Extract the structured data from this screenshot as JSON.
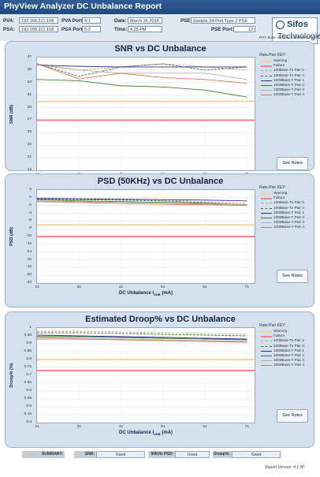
{
  "app": {
    "title": "PhyView Analyzer DC Unbalance Report"
  },
  "header": {
    "pva_label": "PVA:",
    "pva_ip": "192.168.221.108",
    "pva_port_label": "PVA Port:",
    "pva_port": "4-1",
    "psa_label": "PSA:",
    "psa_ip": "192.168.221.108",
    "psa_port_label": "PSA Port:",
    "psa_port": "5-2",
    "date_label": "Date:",
    "date": "March 26 2015",
    "time_label": "Time:",
    "time": "4:25 PM",
    "pse_label": "PSE:",
    "pse": "Sample 24-Port Type-2 PSE",
    "pse_port_label": "PSE Port:",
    "pse_port": "13",
    "suite_version": "PHY Suite Version: 4.100.05-12-15"
  },
  "logo": {
    "line1": "Sifos",
    "line2": "Technologies"
  },
  "legend_title": "Rate-Pair KEY:",
  "legend_items": [
    "Warning",
    "Failure",
    "100Base-Tx Pair 2",
    "100Base-Tx Pair 3",
    "1000Base-T Pair 1",
    "1000Base-T Pair 2",
    "1000Base-T Pair 3",
    "1000Base-T Pair 4"
  ],
  "legend_colors": [
    "#f6d49a",
    "#f3838c",
    "#c0a070",
    "#3a6d3a",
    "#2c2c9a",
    "#3d7c2e",
    "#b0b0b0",
    "#e07050"
  ],
  "notes_label": "See Notes",
  "chart_data": [
    {
      "type": "line",
      "title": "SNR vs DC Unbalance",
      "xlabel": "DC Unbalance I",
      "xlabel_sub": "UNB",
      "xlabel_unit": "(mA)",
      "ylabel": "SNR (dB)",
      "x": [
        21,
        31,
        41,
        51,
        61,
        71
      ],
      "ylim": [
        19,
        37
      ],
      "yticks": [
        19,
        21,
        23,
        25,
        27,
        29,
        31,
        33,
        35,
        37
      ],
      "warning": 30,
      "failure": 27,
      "series": [
        {
          "name": "100Base-Tx Pair 2",
          "dashed": true,
          "values": [
            36,
            35,
            35.5,
            36,
            35.5,
            35
          ]
        },
        {
          "name": "100Base-Tx Pair 3",
          "dashed": true,
          "values": [
            36,
            34,
            35.5,
            36,
            35,
            35.5
          ]
        },
        {
          "name": "1000Base-T Pair 1",
          "dashed": false,
          "values": [
            35.8,
            35.6,
            35.5,
            35.5,
            35.5,
            35.5
          ]
        },
        {
          "name": "1000Base-T Pair 2",
          "dashed": false,
          "values": [
            33.5,
            33.3,
            32.5,
            32.3,
            31.8,
            30.7
          ]
        },
        {
          "name": "1000Base-T Pair 3",
          "dashed": false,
          "values": [
            35.8,
            35,
            34.5,
            34.5,
            34.5,
            33.5
          ]
        },
        {
          "name": "1000Base-T Pair 4",
          "dashed": false,
          "values": [
            36,
            33.6,
            34.5,
            33.8,
            33.5,
            32.9
          ]
        }
      ]
    },
    {
      "type": "line",
      "title": "PSD (50KHz) vs DC Unbalance",
      "xlabel": "DC Unbalance I",
      "xlabel_sub": "UNB",
      "xlabel_unit": "(mA)",
      "ylabel": "PSD (dB)",
      "x": [
        21,
        31,
        41,
        51,
        61,
        71
      ],
      "ylim": [
        -22,
        2
      ],
      "yticks": [
        -22,
        -20,
        -18,
        -16,
        -14,
        -12,
        -10,
        -8,
        -6,
        -4,
        -2,
        0,
        2
      ],
      "warning": -7,
      "failure": -10,
      "series": [
        {
          "name": "100Base-Tx Pair 2",
          "dashed": true,
          "values": [
            0,
            -0.2,
            -0.3,
            -0.5,
            -1,
            -1.5
          ]
        },
        {
          "name": "100Base-Tx Pair 3",
          "dashed": true,
          "values": [
            -0.3,
            -0.5,
            -0.6,
            -0.8,
            -1.3,
            -1.9
          ]
        },
        {
          "name": "1000Base-T Pair 1",
          "dashed": false,
          "values": [
            -0.2,
            -0.3,
            -0.4,
            -0.5,
            -0.6,
            -0.8
          ]
        },
        {
          "name": "1000Base-T Pair 2",
          "dashed": false,
          "values": [
            -0.5,
            -0.8,
            -1,
            -1.2,
            -1.4,
            -1.8
          ]
        },
        {
          "name": "1000Base-T Pair 3",
          "dashed": false,
          "values": [
            -0.8,
            -1,
            -1.2,
            -1.4,
            -1.6,
            -1.8
          ]
        },
        {
          "name": "1000Base-T Pair 4",
          "dashed": false,
          "values": [
            -1,
            -1.2,
            -1.5,
            -1.7,
            -1.8,
            -2
          ]
        }
      ]
    },
    {
      "type": "line",
      "title": "Estimated Droop% vs DC Unbalance",
      "xlabel": "DC Unbalance I",
      "xlabel_sub": "UNB",
      "xlabel_unit": "(mA)",
      "ylabel": "Droop% (%)",
      "x": [
        21,
        31,
        41,
        51,
        61,
        71
      ],
      "ylim": [
        0.4,
        1
      ],
      "yticks": [
        0.4,
        0.45,
        0.5,
        0.55,
        0.6,
        0.65,
        0.7,
        0.75,
        0.8,
        0.85,
        0.9,
        0.95,
        1
      ],
      "warning": 0.8,
      "failure": 0.73,
      "series": [
        {
          "name": "100Base-Tx Pair 2",
          "dashed": true,
          "values": [
            0.98,
            0.98,
            0.975,
            0.97,
            0.965,
            0.96
          ]
        },
        {
          "name": "100Base-Tx Pair 3",
          "dashed": true,
          "values": [
            0.97,
            0.97,
            0.965,
            0.96,
            0.955,
            0.95
          ]
        },
        {
          "name": "1000Base-T Pair 1",
          "dashed": false,
          "values": [
            0.955,
            0.95,
            0.945,
            0.94,
            0.935,
            0.93
          ]
        },
        {
          "name": "1000Base-T Pair 2",
          "dashed": false,
          "values": [
            0.945,
            0.945,
            0.94,
            0.935,
            0.93,
            0.925
          ]
        },
        {
          "name": "1000Base-T Pair 3",
          "dashed": false,
          "values": [
            0.94,
            0.935,
            0.93,
            0.925,
            0.92,
            0.915
          ]
        },
        {
          "name": "1000Base-T Pair 4",
          "dashed": false,
          "values": [
            0.93,
            0.93,
            0.925,
            0.92,
            0.915,
            0.91
          ]
        }
      ]
    }
  ],
  "summary": {
    "title": "SUMMARY:",
    "snr_label": "SNR:",
    "snr_value": "Good",
    "psd_label": "50KHz PSD:",
    "psd_value": "Good",
    "droop_label": "Droop%:",
    "droop_value": "Good"
  },
  "report_version": "Report Version: 4.1.00"
}
